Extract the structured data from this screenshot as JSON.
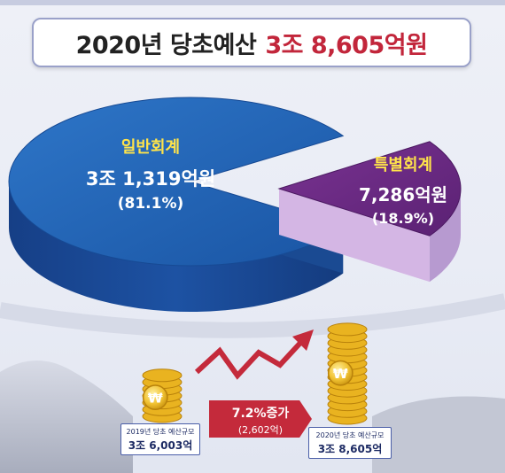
{
  "title": {
    "main": "2020년 당초예산",
    "amount": "3조 8,605억원"
  },
  "chart_data": {
    "type": "pie",
    "title": "2020년 당초예산 3조 8,605억원",
    "slices": [
      {
        "label": "일반회계",
        "amount": "3조 1,319억원",
        "percent_label": "(81.1%)",
        "value": 81.1,
        "color": "#1f5fb0"
      },
      {
        "label": "특별회계",
        "amount": "7,286억원",
        "percent_label": "(18.9%)",
        "value": 18.9,
        "color": "#6a2b83"
      }
    ]
  },
  "label_colors": {
    "general_label": "#ffe44a",
    "special_label": "#ffe44a",
    "white": "#ffffff"
  },
  "comparison": {
    "before": {
      "caption": "2019년 당초 예산규모",
      "amount": "3조 6,003억"
    },
    "after": {
      "caption": "2020년 당초 예산규모",
      "amount": "3조 8,605억"
    },
    "growth": {
      "rate": "7.2%증가",
      "diff": "(2,602억)"
    },
    "currency_symbol": "₩",
    "colors": {
      "coin": "#e9b320",
      "arrow": "#c42a3b"
    }
  }
}
